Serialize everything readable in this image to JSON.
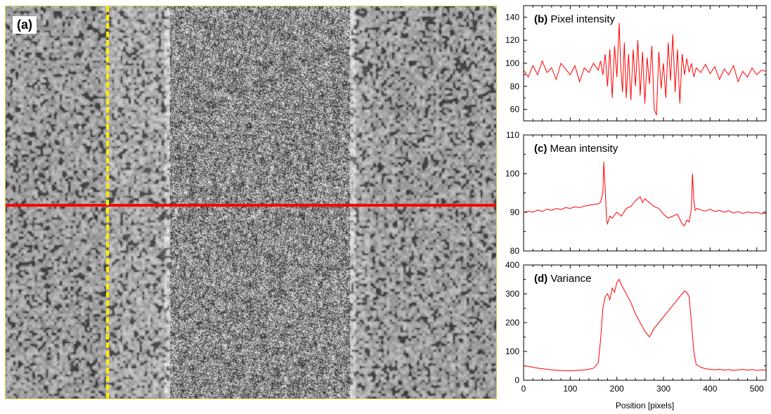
{
  "image_panel": {
    "label": "(a)",
    "colors": {
      "horizontal_line": "#ff0000",
      "vertical_line": "#ffee00"
    }
  },
  "chart_data": [
    {
      "type": "line",
      "label": "(b)",
      "title": "Pixel intensity",
      "xlim": [
        0,
        520
      ],
      "ylim": [
        50,
        150
      ],
      "yticks": [
        60,
        80,
        100,
        120,
        140
      ],
      "xticks": [
        0,
        100,
        200,
        300,
        400,
        500
      ],
      "series": [
        {
          "color": "#ff0000",
          "x": [
            0,
            10,
            20,
            30,
            40,
            50,
            60,
            70,
            80,
            90,
            100,
            110,
            120,
            130,
            140,
            150,
            160,
            165,
            170,
            175,
            180,
            185,
            190,
            195,
            200,
            205,
            208,
            212,
            216,
            220,
            225,
            230,
            235,
            240,
            245,
            250,
            255,
            260,
            265,
            270,
            275,
            280,
            285,
            290,
            295,
            300,
            305,
            310,
            315,
            320,
            325,
            330,
            335,
            340,
            345,
            350,
            355,
            360,
            365,
            370,
            380,
            390,
            400,
            410,
            420,
            430,
            440,
            450,
            460,
            470,
            480,
            490,
            500,
            510,
            520
          ],
          "y": [
            94,
            88,
            98,
            90,
            102,
            92,
            96,
            86,
            100,
            95,
            90,
            98,
            84,
            96,
            92,
            100,
            94,
            102,
            90,
            108,
            80,
            112,
            70,
            115,
            88,
            135,
            100,
            75,
            118,
            70,
            108,
            68,
            112,
            80,
            120,
            72,
            110,
            65,
            105,
            82,
            115,
            60,
            55,
            110,
            78,
            100,
            70,
            118,
            85,
            125,
            75,
            112,
            65,
            108,
            90,
            104,
            92,
            100,
            88,
            96,
            92,
            99,
            91,
            97,
            86,
            95,
            90,
            98,
            84,
            93,
            88,
            96,
            90,
            94,
            93
          ]
        }
      ]
    },
    {
      "type": "line",
      "label": "(c)",
      "title": "Mean intensity",
      "xlim": [
        0,
        520
      ],
      "ylim": [
        80,
        110
      ],
      "yticks": [
        80,
        90,
        100,
        110
      ],
      "xticks": [
        0,
        100,
        200,
        300,
        400,
        500
      ],
      "series": [
        {
          "color": "#ff0000",
          "x": [
            0,
            10,
            20,
            30,
            40,
            50,
            60,
            70,
            80,
            90,
            100,
            110,
            120,
            130,
            140,
            150,
            160,
            165,
            170,
            172,
            175,
            178,
            180,
            185,
            190,
            200,
            210,
            220,
            230,
            240,
            250,
            255,
            260,
            270,
            280,
            290,
            300,
            310,
            320,
            330,
            340,
            345,
            350,
            355,
            360,
            362,
            365,
            368,
            372,
            380,
            390,
            400,
            410,
            420,
            430,
            440,
            450,
            460,
            470,
            480,
            490,
            500,
            510,
            520
          ],
          "y": [
            90,
            90.3,
            90,
            90.6,
            90.2,
            90.8,
            90.5,
            91,
            90.7,
            91.2,
            91,
            91.4,
            91.2,
            91.6,
            91.8,
            92,
            92.2,
            92.6,
            95,
            103,
            96,
            88,
            87,
            89,
            88.5,
            90,
            89,
            91,
            91.5,
            93,
            94,
            92.5,
            93.5,
            92.5,
            91.5,
            91,
            89.5,
            88.5,
            89,
            89.5,
            87,
            86.5,
            88,
            87.5,
            91,
            100,
            93,
            90.5,
            91,
            90.6,
            90.3,
            90.8,
            90.2,
            90.5,
            90,
            90.4,
            89.8,
            90.2,
            89.7,
            90.1,
            89.8,
            90,
            89.6,
            89.8
          ]
        }
      ]
    },
    {
      "type": "line",
      "label": "(d)",
      "title": "Variance",
      "xlim": [
        0,
        520
      ],
      "ylim": [
        0,
        400
      ],
      "yticks": [
        0,
        100,
        200,
        300,
        400
      ],
      "xticks": [
        0,
        100,
        200,
        300,
        400,
        500
      ],
      "xlabel": "Position [pixels]",
      "series": [
        {
          "color": "#ff0000",
          "x": [
            0,
            10,
            20,
            30,
            40,
            50,
            60,
            70,
            80,
            90,
            100,
            110,
            120,
            130,
            140,
            150,
            160,
            165,
            170,
            175,
            180,
            185,
            190,
            195,
            200,
            205,
            210,
            220,
            230,
            240,
            250,
            260,
            270,
            280,
            290,
            300,
            310,
            320,
            330,
            340,
            345,
            350,
            355,
            360,
            365,
            370,
            380,
            390,
            400,
            410,
            420,
            430,
            440,
            450,
            460,
            470,
            480,
            490,
            500,
            510,
            520
          ],
          "y": [
            50,
            48,
            45,
            42,
            40,
            38,
            36,
            35,
            34,
            33,
            33,
            34,
            35,
            36,
            38,
            42,
            60,
            140,
            250,
            290,
            300,
            280,
            320,
            305,
            340,
            350,
            330,
            300,
            270,
            230,
            200,
            170,
            150,
            180,
            200,
            220,
            240,
            260,
            280,
            300,
            310,
            305,
            290,
            200,
            100,
            55,
            45,
            40,
            38,
            36,
            38,
            35,
            37,
            34,
            36,
            38,
            35,
            37,
            34,
            36,
            35
          ]
        }
      ]
    }
  ]
}
